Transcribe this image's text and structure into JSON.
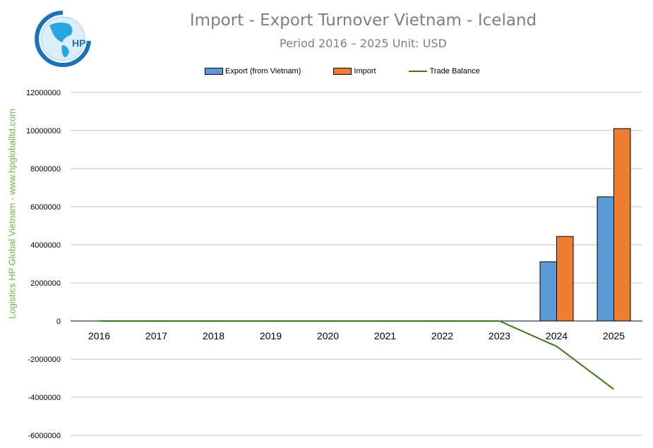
{
  "logo": {
    "text": "HP"
  },
  "side_label": "Logistics HP Global Vietnam - www.hpgloballtd.com",
  "colors": {
    "export": "#5b9bd5",
    "import": "#ed7d31",
    "balance": "#3a7a1a",
    "side_label": "#6fb43f"
  },
  "chart_data": {
    "type": "bar",
    "title": "Import - Export Turnover Vietnam - Iceland",
    "subtitle": "Period 2016 – 2025  Unit: USD",
    "categories": [
      "2016",
      "2017",
      "2018",
      "2019",
      "2020",
      "2021",
      "2022",
      "2023",
      "2024",
      "2025"
    ],
    "series": [
      {
        "name": "Export (from Vietnam)",
        "kind": "bar",
        "values": [
          0,
          0,
          0,
          0,
          0,
          0,
          0,
          0,
          3110000,
          6520000
        ]
      },
      {
        "name": "Import",
        "kind": "bar",
        "values": [
          0,
          0,
          0,
          0,
          0,
          0,
          0,
          0,
          4440000,
          10100000
        ]
      },
      {
        "name": "Trade Balance",
        "kind": "line",
        "values": [
          0,
          0,
          0,
          0,
          0,
          0,
          0,
          0,
          -1330000,
          -3580000
        ]
      }
    ],
    "ylim": [
      -6000000,
      12000000
    ],
    "yticks": [
      "12000000",
      "10000000",
      "8000000",
      "6000000",
      "4000000",
      "2000000",
      "0",
      "-2000000",
      "-4000000",
      "-6000000"
    ],
    "grid": true,
    "legend": "top"
  }
}
